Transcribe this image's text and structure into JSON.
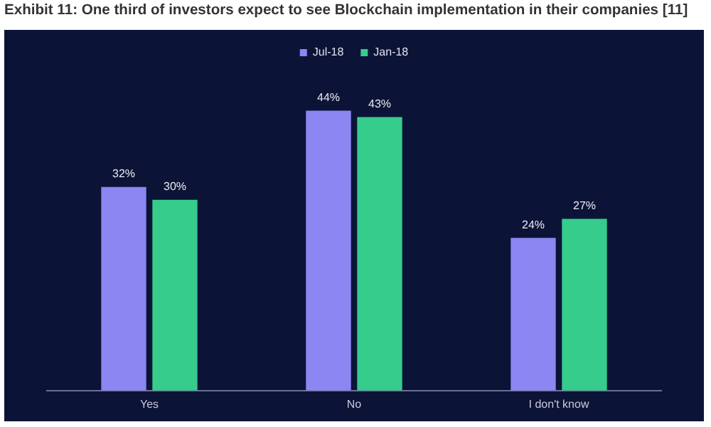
{
  "chart_data": {
    "type": "bar",
    "title": "Exhibit 11: One third of investors expect to see Blockchain implementation in their companies [11]",
    "categories": [
      "Yes",
      "No",
      "I don't know"
    ],
    "series": [
      {
        "name": "Jul-18",
        "color": "#8b86f2",
        "values": [
          32,
          44,
          24
        ],
        "value_labels": [
          "32%",
          "44%",
          "24%"
        ]
      },
      {
        "name": "Jan-18",
        "color": "#36cc8c",
        "values": [
          30,
          43,
          27
        ],
        "value_labels": [
          "30%",
          "43%",
          "27%"
        ]
      }
    ],
    "legend": "top",
    "grid": false,
    "tick_labels": "x"
  }
}
